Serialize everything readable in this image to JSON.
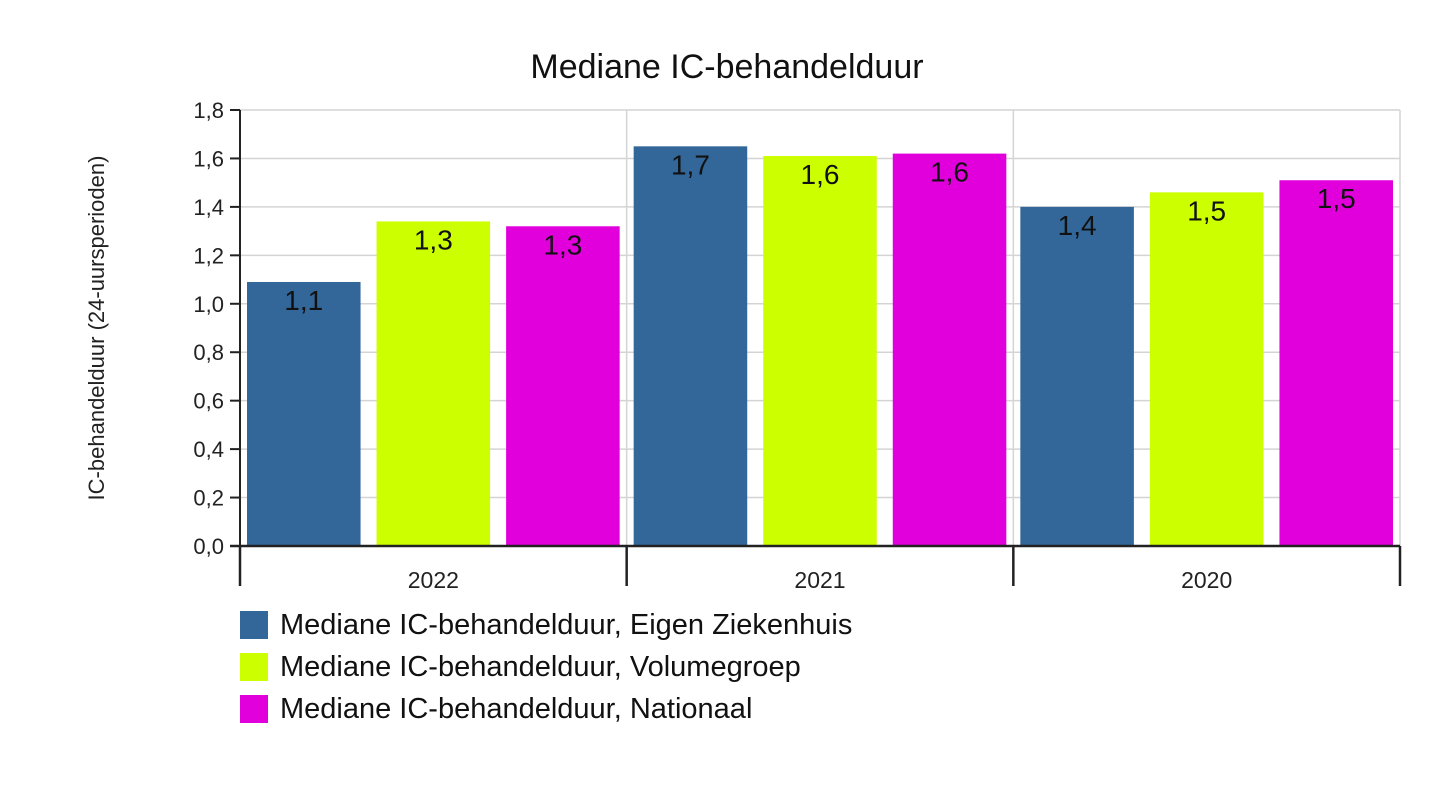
{
  "chart_data": {
    "type": "bar",
    "title": "Mediane IC-behandelduur",
    "xlabel": "",
    "ylabel": "IC-behandelduur (24-uursperioden)",
    "ylim": [
      0,
      1.8
    ],
    "ytick_step": 0.2,
    "ytick_labels": [
      "0,0",
      "0,2",
      "0,4",
      "0,6",
      "0,8",
      "1,0",
      "1,2",
      "1,4",
      "1,6",
      "1,8"
    ],
    "categories": [
      "2022",
      "2021",
      "2020"
    ],
    "series": [
      {
        "name": "Mediane IC-behandelduur, Eigen Ziekenhuis",
        "color": "#336699",
        "values": [
          1.09,
          1.65,
          1.4
        ],
        "labels": [
          "1,1",
          "1,7",
          "1,4"
        ]
      },
      {
        "name": "Mediane IC-behandelduur, Volumegroep",
        "color": "#CCFF00",
        "values": [
          1.34,
          1.61,
          1.46
        ],
        "labels": [
          "1,3",
          "1,6",
          "1,5"
        ]
      },
      {
        "name": "Mediane IC-behandelduur, Nationaal",
        "color": "#E100DC",
        "values": [
          1.32,
          1.62,
          1.51
        ],
        "labels": [
          "1,3",
          "1,6",
          "1,5"
        ]
      }
    ],
    "grid": true,
    "legend_position": "bottom-left"
  }
}
